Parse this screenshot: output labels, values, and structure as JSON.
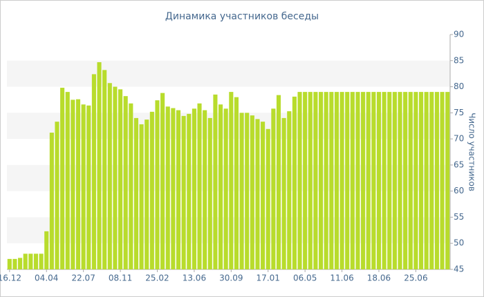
{
  "chart_data": {
    "type": "bar",
    "title": "Динамика участников беседы",
    "y_label": "Число участников",
    "color": "#b8dc2c",
    "grid": true,
    "categories": [
      "16.12",
      null,
      null,
      null,
      null,
      null,
      null,
      "04.04",
      null,
      null,
      null,
      null,
      null,
      null,
      "22.07",
      null,
      null,
      null,
      null,
      null,
      null,
      "08.11",
      null,
      null,
      null,
      null,
      null,
      null,
      "25.02",
      null,
      null,
      null,
      null,
      null,
      null,
      "13.06",
      null,
      null,
      null,
      null,
      null,
      null,
      "30.09",
      null,
      null,
      null,
      null,
      null,
      null,
      "17.01",
      null,
      null,
      null,
      null,
      null,
      null,
      "06.05",
      null,
      null,
      null,
      null,
      null,
      null,
      "11.06",
      null,
      null,
      null,
      null,
      null,
      null,
      "18.06",
      null,
      null,
      null,
      null,
      null,
      null,
      "25.06",
      null,
      null,
      null,
      null,
      null,
      null
    ],
    "values": [
      47,
      47,
      47.2,
      48,
      48,
      48,
      48,
      52.3,
      71.2,
      73.3,
      79.8,
      79,
      77.5,
      77.6,
      76.6,
      76.4,
      82.4,
      84.7,
      83.2,
      80.7,
      80,
      79.5,
      78.2,
      76.8,
      74,
      72.8,
      73.7,
      75.2,
      77.4,
      78.8,
      76.2,
      75.9,
      75.5,
      74.4,
      74.8,
      75.8,
      76.8,
      75.5,
      74,
      78.5,
      76.6,
      75.8,
      79,
      78,
      75,
      75,
      74.5,
      73.8,
      73.3,
      71.9,
      75.8,
      78.4,
      74,
      75.3,
      78.1,
      79,
      79,
      79,
      79,
      79,
      79,
      79,
      79,
      79,
      79,
      79,
      79,
      79,
      79,
      79,
      79,
      79,
      79,
      79,
      79,
      79,
      79,
      79,
      79,
      79,
      79,
      79,
      79,
      79
    ],
    "ylim": [
      45,
      90
    ],
    "yticks": [
      45,
      50,
      55,
      60,
      65,
      70,
      75,
      80,
      85,
      90
    ]
  }
}
